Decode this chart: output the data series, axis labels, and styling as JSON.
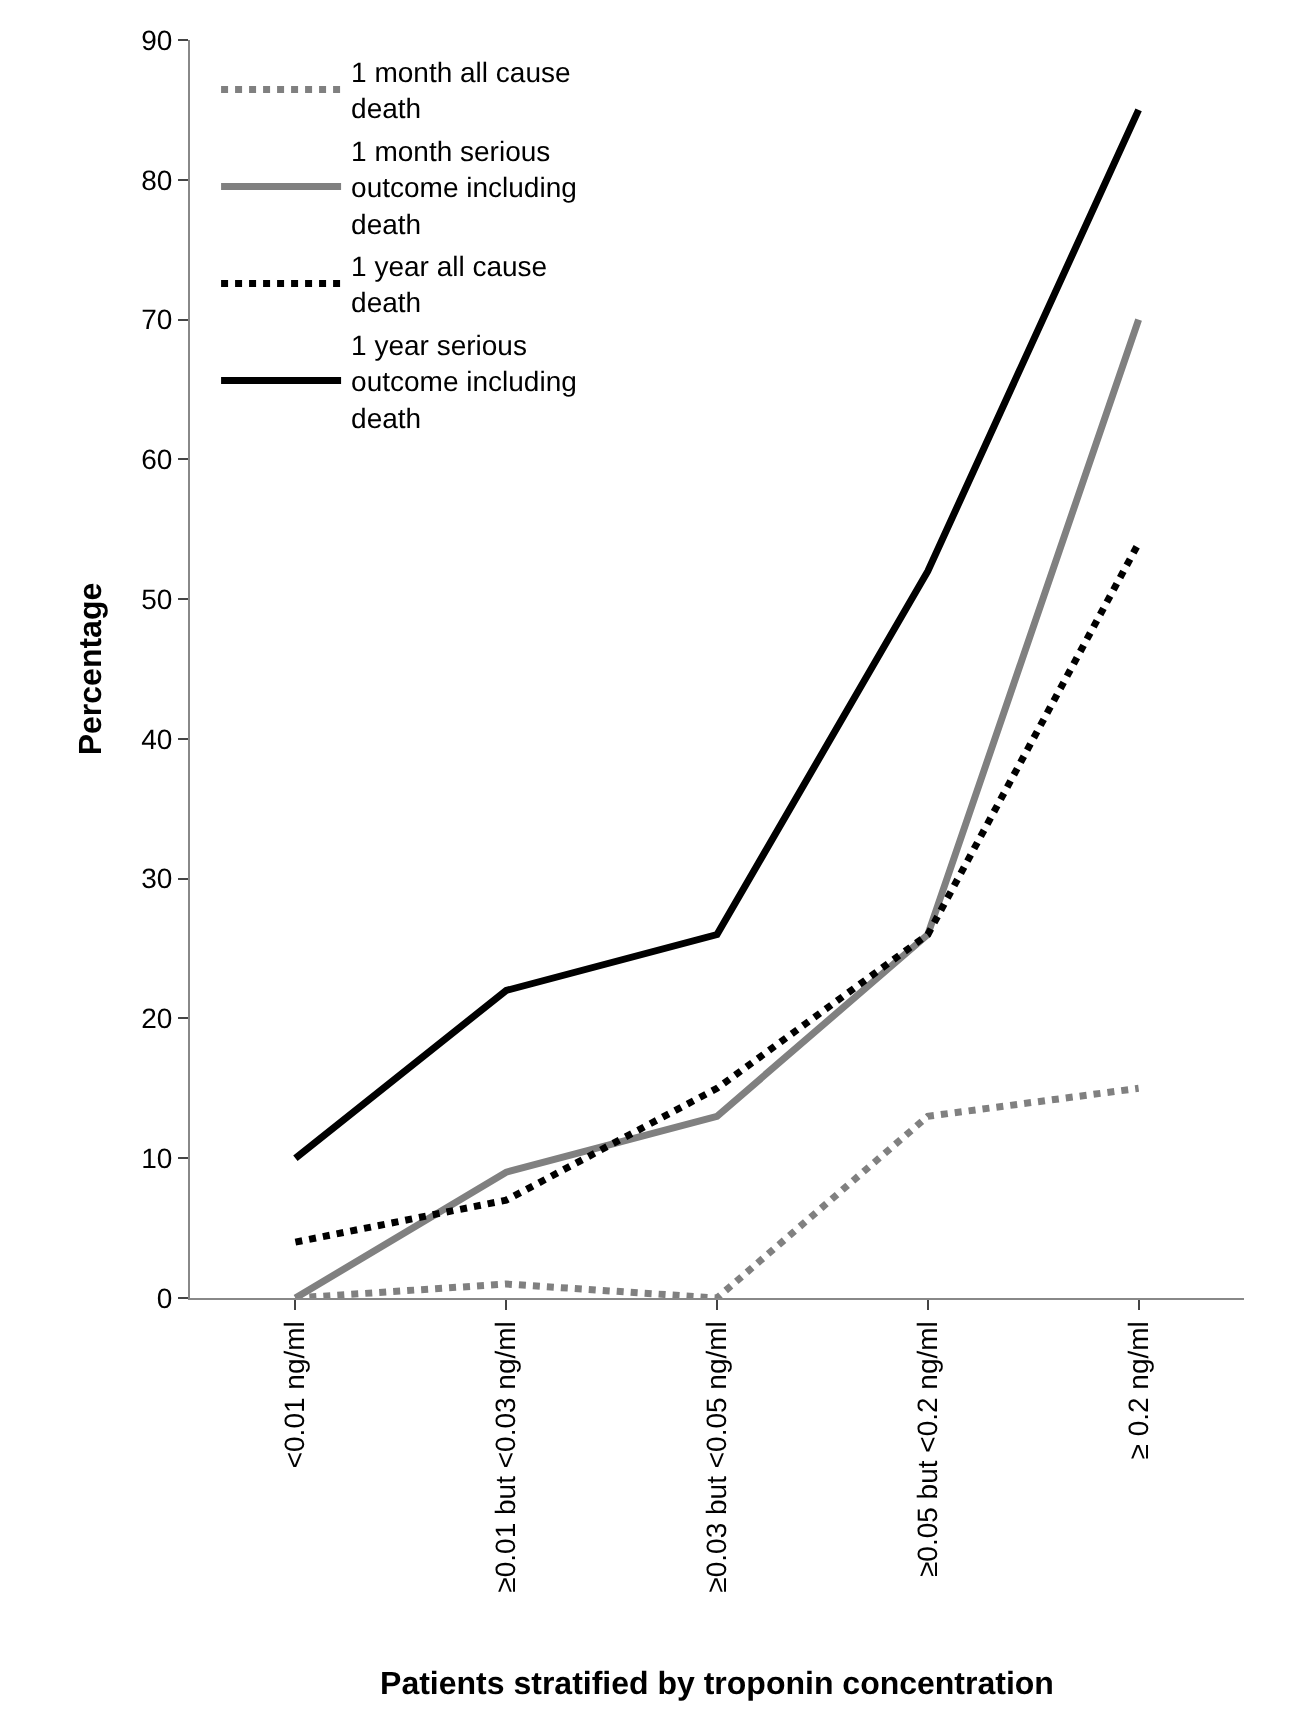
{
  "chart_data": {
    "type": "line",
    "xlabel": "Patients stratified by troponin concentration",
    "ylabel": "Percentage",
    "categories": [
      "<0.01 ng/ml",
      "≥0.01 but <0.03 ng/ml",
      "≥0.03 but <0.05 ng/ml",
      "≥0.05 but <0.2 ng/ml",
      "≥ 0.2 ng/ml"
    ],
    "series": [
      {
        "name": "1 month all cause death",
        "color": "#808080",
        "line_style": "dotted",
        "values": [
          0,
          1,
          0,
          13,
          15
        ]
      },
      {
        "name": "1 month serious outcome including death",
        "color": "#808080",
        "line_style": "solid",
        "values": [
          0,
          9,
          13,
          26,
          70
        ]
      },
      {
        "name": "1 year all cause death",
        "color": "#000000",
        "line_style": "dotted",
        "values": [
          4,
          7,
          15,
          26,
          54
        ]
      },
      {
        "name": "1 year serious outcome including death",
        "color": "#000000",
        "line_style": "solid",
        "values": [
          10,
          22,
          26,
          52,
          85
        ]
      }
    ],
    "ylim": [
      0,
      90
    ],
    "yticks": [
      0,
      10,
      20,
      30,
      40,
      50,
      60,
      70,
      80,
      90
    ],
    "legend": "top left",
    "marker": "none"
  }
}
